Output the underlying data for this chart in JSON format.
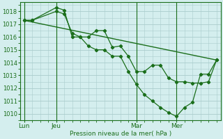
{
  "background_color": "#d4eeee",
  "grid_color": "#aacccc",
  "line_color": "#1a6e1a",
  "ylabel": "Pression niveau de la mer( hPa )",
  "ylim": [
    1009.5,
    1018.7
  ],
  "yticks": [
    1010,
    1011,
    1012,
    1013,
    1014,
    1015,
    1016,
    1017,
    1018
  ],
  "xtick_labels": [
    "Lun",
    "Jeu",
    "Mar",
    "Mer"
  ],
  "xtick_positions": [
    0,
    4,
    14,
    19
  ],
  "xlim": [
    -0.5,
    24.5
  ],
  "series1_x": [
    0,
    1,
    4,
    5,
    6,
    7,
    8,
    9,
    10,
    11,
    12,
    13,
    14,
    15,
    16,
    17,
    18,
    19,
    20,
    21,
    22,
    23,
    24
  ],
  "series1_y": [
    1017.3,
    1017.3,
    1018.0,
    1017.8,
    1016.3,
    1016.0,
    1016.0,
    1016.5,
    1016.5,
    1015.2,
    1015.3,
    1014.5,
    1013.3,
    1013.3,
    1013.8,
    1013.8,
    1012.8,
    1012.5,
    1012.5,
    1012.4,
    1012.4,
    1012.5,
    1014.2
  ],
  "series2_x": [
    0,
    1,
    4,
    5,
    6,
    7,
    8,
    9,
    10,
    11,
    12,
    13,
    14,
    15,
    16,
    17,
    18,
    19,
    20,
    21,
    22,
    23,
    24
  ],
  "series2_y": [
    1017.3,
    1017.3,
    1018.3,
    1018.1,
    1016.0,
    1016.0,
    1015.3,
    1015.0,
    1015.0,
    1014.5,
    1014.5,
    1013.3,
    1012.3,
    1011.5,
    1011.0,
    1010.5,
    1010.1,
    1009.8,
    1010.5,
    1010.9,
    1013.1,
    1013.1,
    1014.2
  ],
  "series3_x": [
    0,
    24
  ],
  "series3_y": [
    1017.3,
    1014.2
  ],
  "vline_positions": [
    0,
    4,
    14,
    19
  ]
}
